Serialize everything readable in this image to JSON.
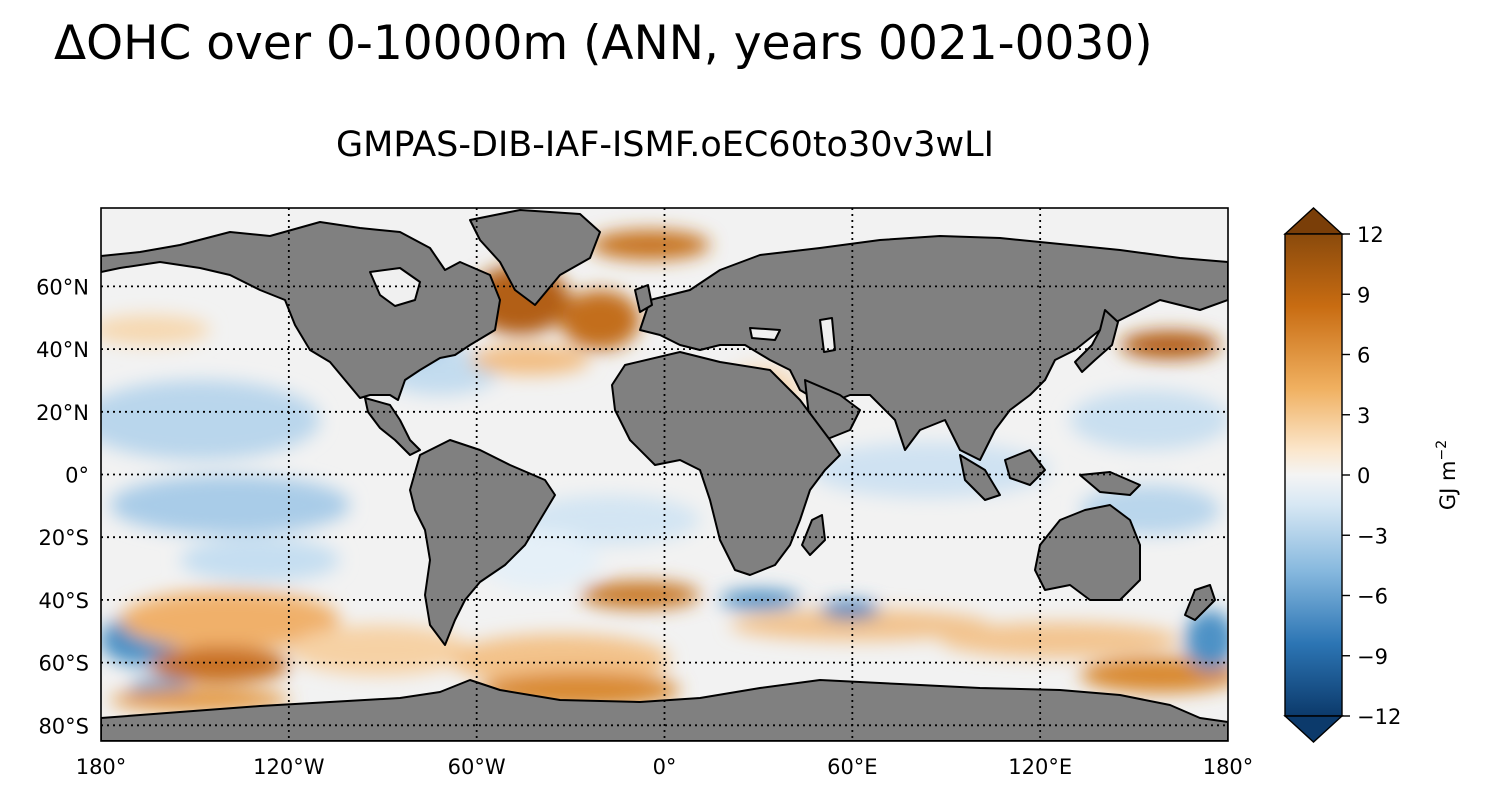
{
  "title": "ΔOHC over 0-10000m (ANN, years 0021-0030)",
  "subtitle": "GMPAS-DIB-IAF-ISMF.oEC60to30v3wLI",
  "map": {
    "lon_ticks": [
      {
        "lon": -180,
        "label": "180°"
      },
      {
        "lon": -120,
        "label": "120°W"
      },
      {
        "lon": -60,
        "label": "60°W"
      },
      {
        "lon": 0,
        "label": "0°"
      },
      {
        "lon": 60,
        "label": "60°E"
      },
      {
        "lon": 120,
        "label": "120°E"
      },
      {
        "lon": 180,
        "label": "180°"
      }
    ],
    "lat_ticks": [
      {
        "lat": 60,
        "label": "60°N"
      },
      {
        "lat": 40,
        "label": "40°N"
      },
      {
        "lat": 20,
        "label": "20°N"
      },
      {
        "lat": 0,
        "label": "0°"
      },
      {
        "lat": -20,
        "label": "20°S"
      },
      {
        "lat": -40,
        "label": "40°S"
      },
      {
        "lat": -60,
        "label": "60°S"
      },
      {
        "lat": -80,
        "label": "80°S"
      }
    ],
    "lon_range": [
      -180,
      180
    ],
    "lat_range": [
      -85,
      85
    ],
    "land_color": "#808080",
    "gridlines": "dotted"
  },
  "colorbar": {
    "label": "GJ m",
    "label_exp": "−2",
    "range": [
      -12,
      12
    ],
    "extend": "both",
    "ticks": [
      {
        "value": 12,
        "label": "12"
      },
      {
        "value": 9,
        "label": "9"
      },
      {
        "value": 6,
        "label": "6"
      },
      {
        "value": 3,
        "label": "3"
      },
      {
        "value": 0,
        "label": "0"
      },
      {
        "value": -3,
        "label": "−3"
      },
      {
        "value": -6,
        "label": "−6"
      },
      {
        "value": -9,
        "label": "−9"
      },
      {
        "value": -12,
        "label": "−12"
      }
    ],
    "colors": {
      "max": "#7a3e08",
      "warm": "#d9821c",
      "light_warm": "#f6d4a6",
      "zero": "#f4f4f4",
      "light_cool": "#c3dcef",
      "cool": "#4b92c6",
      "min": "#0c3a6b"
    }
  }
}
